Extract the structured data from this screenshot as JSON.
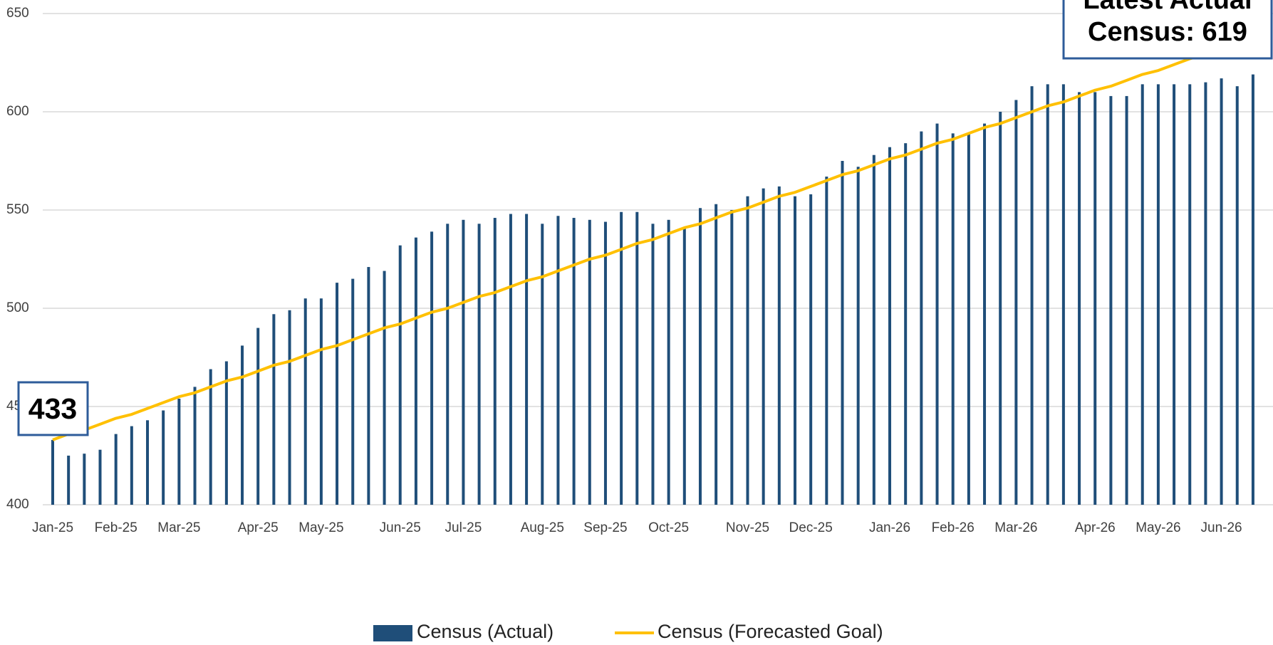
{
  "chart_data": {
    "type": "bar-line",
    "categories": [
      "Jan-25",
      null,
      null,
      null,
      "Feb-25",
      null,
      null,
      null,
      "Mar-25",
      null,
      null,
      null,
      null,
      "Apr-25",
      null,
      null,
      null,
      "May-25",
      null,
      null,
      null,
      null,
      "Jun-25",
      null,
      null,
      null,
      "Jul-25",
      null,
      null,
      null,
      null,
      "Aug-25",
      null,
      null,
      null,
      "Sep-25",
      null,
      null,
      null,
      "Oct-25",
      null,
      null,
      null,
      null,
      "Nov-25",
      null,
      null,
      null,
      "Dec-25",
      null,
      null,
      null,
      null,
      "Jan-26",
      null,
      null,
      null,
      "Feb-26",
      null,
      null,
      null,
      "Mar-26",
      null,
      null,
      null,
      null,
      "Apr-26",
      null,
      null,
      null,
      "May-26",
      null,
      null,
      null,
      "Jun-26",
      null,
      null
    ],
    "series": [
      {
        "name": "Census (Actual)",
        "kind": "bar",
        "color": "#1f4e79",
        "values": [
          433,
          425,
          426,
          428,
          436,
          440,
          443,
          448,
          454,
          460,
          469,
          473,
          481,
          490,
          497,
          499,
          505,
          505,
          513,
          515,
          521,
          519,
          532,
          536,
          539,
          543,
          545,
          543,
          546,
          548,
          548,
          543,
          547,
          546,
          545,
          544,
          549,
          549,
          543,
          545,
          541,
          551,
          553,
          550,
          557,
          561,
          562,
          557,
          558,
          567,
          575,
          572,
          578,
          582,
          584,
          590,
          594,
          589,
          589,
          594,
          600,
          606,
          613,
          614,
          614,
          610,
          610,
          608,
          608,
          614,
          614,
          614,
          614,
          615,
          617,
          613,
          619
        ]
      },
      {
        "name": "Census (Forecasted Goal)",
        "kind": "line",
        "color": "#ffc000",
        "values": [
          433,
          436,
          438,
          441,
          444,
          446,
          449,
          452,
          455,
          457,
          460,
          463,
          465,
          468,
          471,
          473,
          476,
          479,
          481,
          484,
          487,
          490,
          492,
          495,
          498,
          500,
          503,
          506,
          508,
          511,
          514,
          516,
          519,
          522,
          525,
          527,
          530,
          533,
          535,
          538,
          541,
          543,
          546,
          549,
          551,
          554,
          557,
          559,
          562,
          565,
          568,
          570,
          573,
          576,
          578,
          581,
          584,
          586,
          589,
          592,
          594,
          597,
          600,
          603,
          605,
          608,
          611,
          613,
          616,
          619,
          621,
          624,
          627,
          629,
          632,
          null,
          null
        ]
      }
    ],
    "ylim": [
      400,
      650
    ],
    "yticks": [
      400,
      450,
      500,
      550,
      600,
      650
    ],
    "grid": true,
    "annotations": [
      "433",
      "Latest Actual",
      "Census: 619"
    ]
  }
}
